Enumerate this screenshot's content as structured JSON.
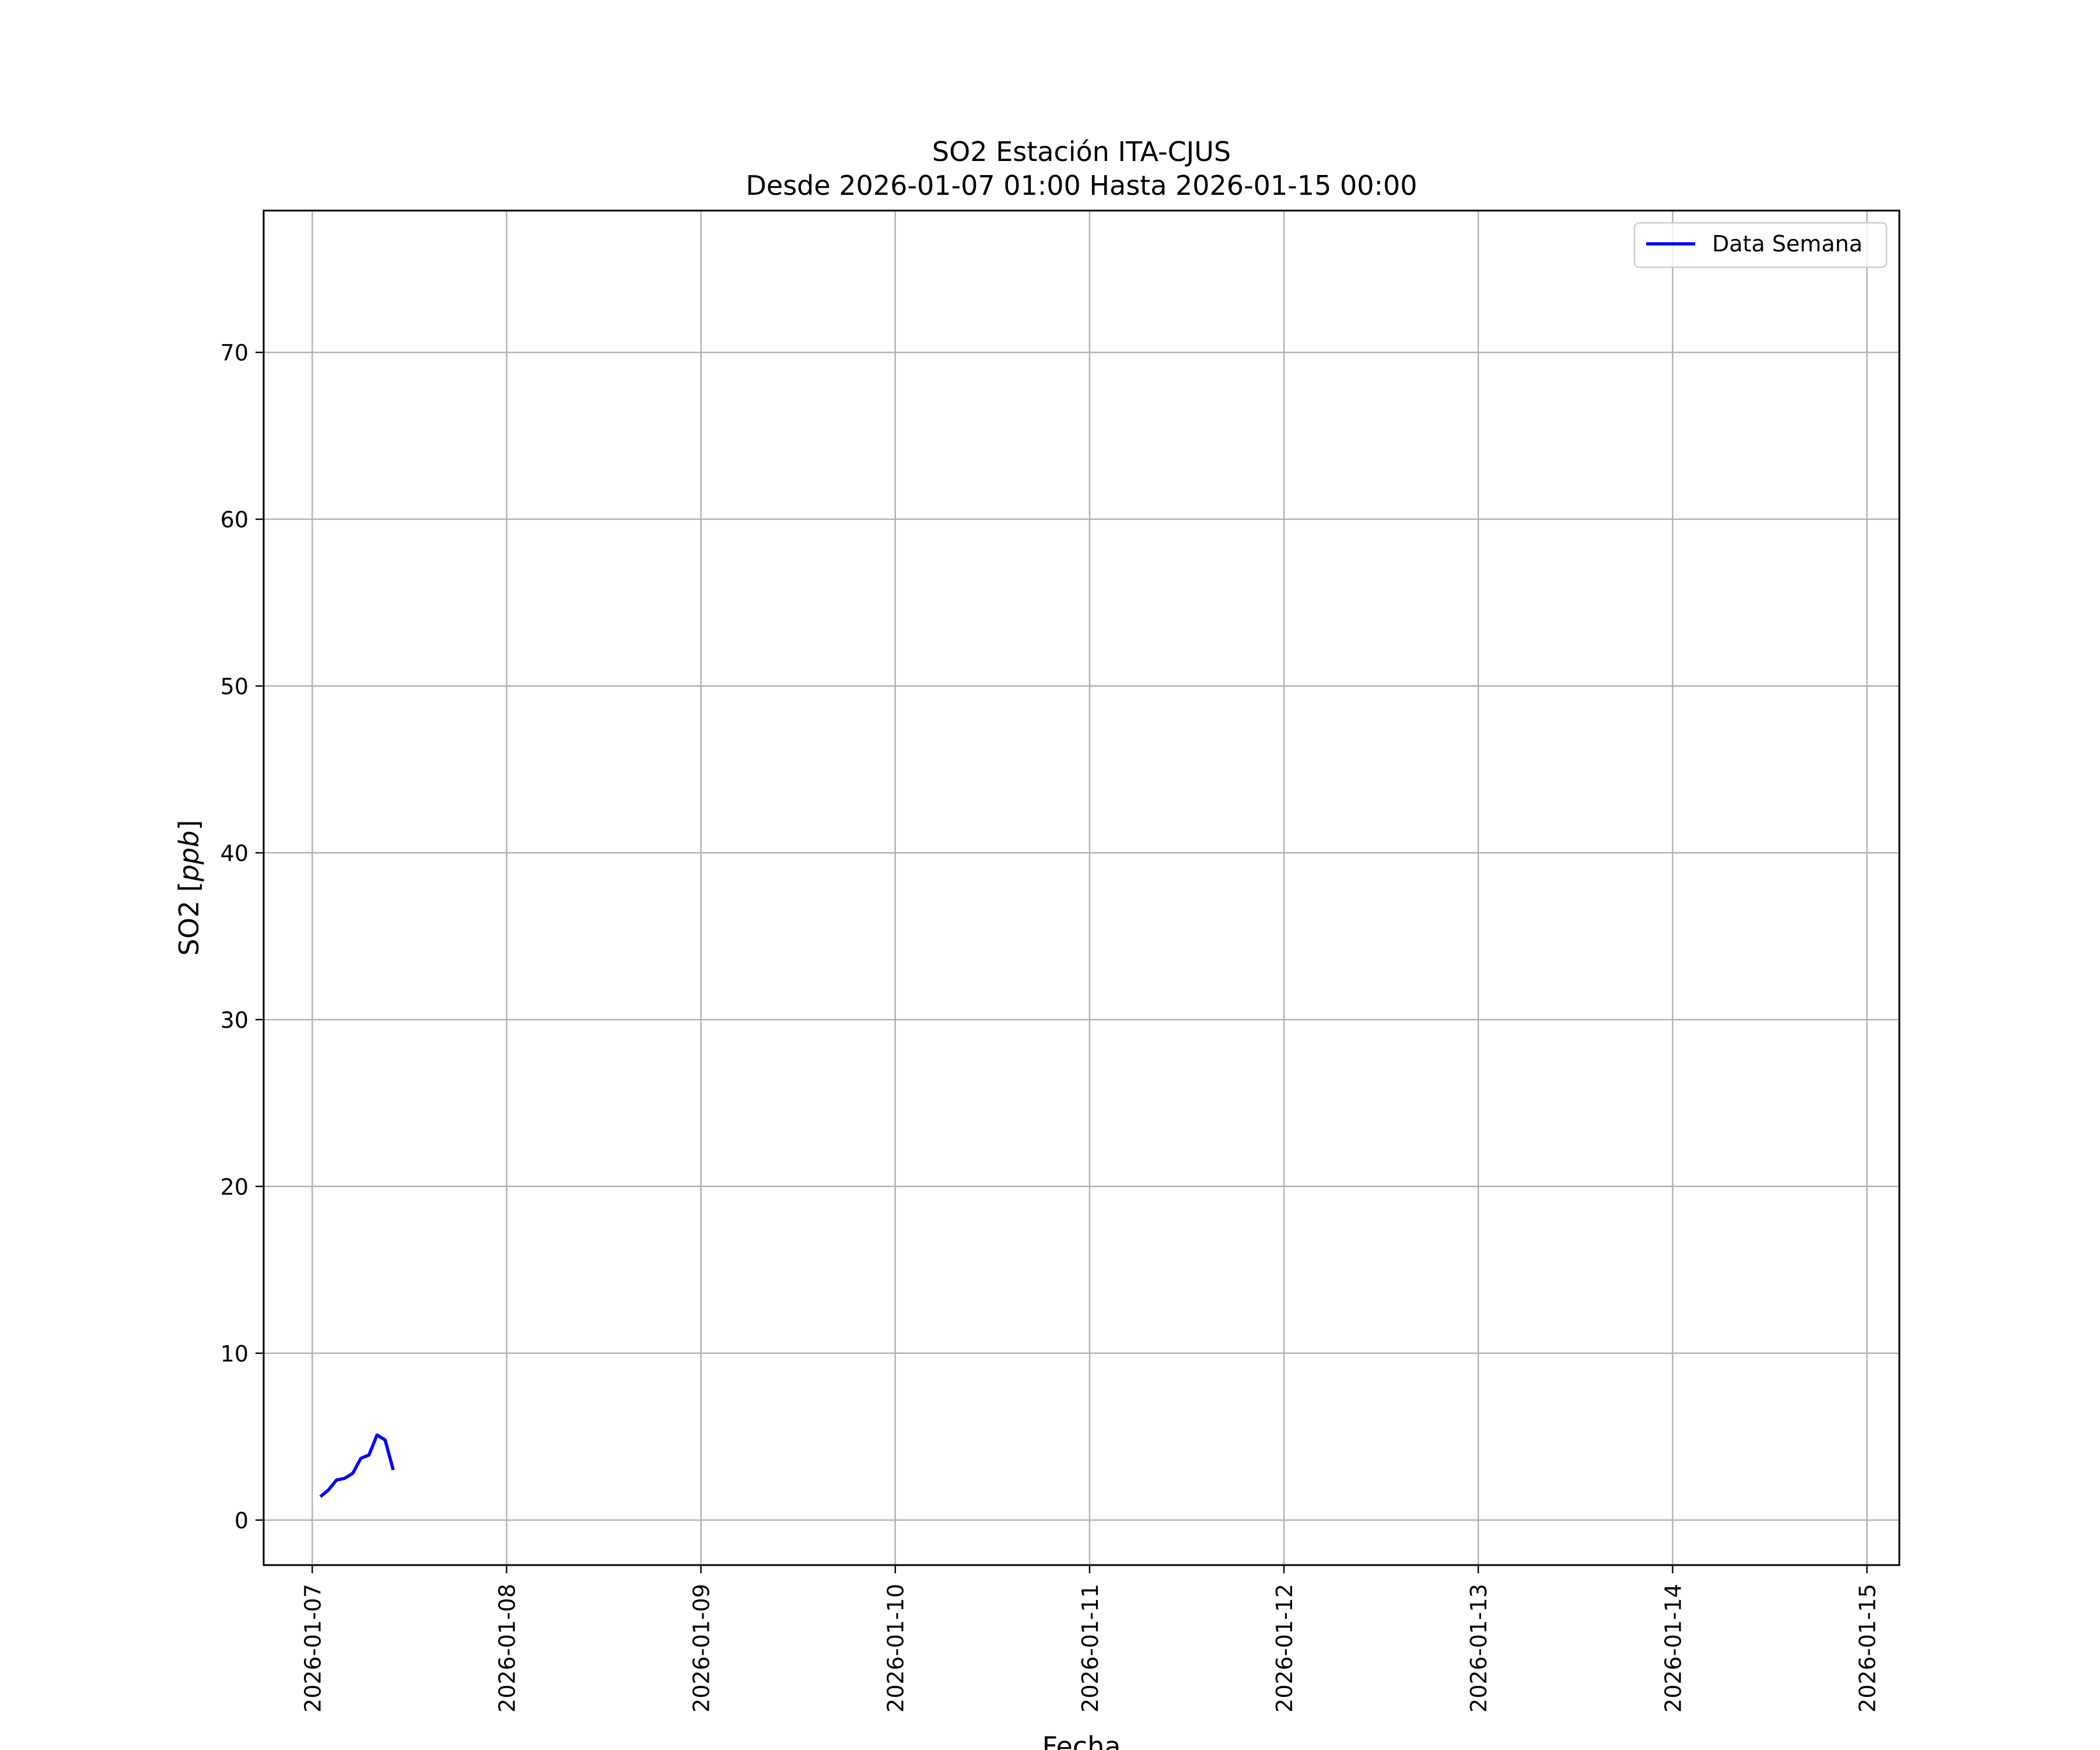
{
  "chart_data": {
    "type": "line",
    "title": "SO2 Estación ITA-CJUS",
    "subtitle": "Desde 2026-01-07 01:00 Hasta 2026-01-15 00:00",
    "xlabel": "Fecha",
    "ylabel_prefix": "SO2 [",
    "ylabel_unit": "ppb",
    "ylabel_suffix": "]",
    "xlim": [
      "2026-01-06 18:00",
      "2026-01-15 04:00"
    ],
    "ylim": [
      -2.7,
      78.5
    ],
    "x_ticks": [
      "2026-01-07",
      "2026-01-08",
      "2026-01-09",
      "2026-01-10",
      "2026-01-11",
      "2026-01-12",
      "2026-01-13",
      "2026-01-14",
      "2026-01-15"
    ],
    "y_ticks": [
      0,
      10,
      20,
      30,
      40,
      50,
      60,
      70
    ],
    "grid": true,
    "legend_position": "top-right",
    "series": [
      {
        "name": "Data Semana",
        "color": "#0000ff",
        "start": "2026-01-07 01:00",
        "interval_hours": 1,
        "values": [
          1.4,
          1.8,
          2.4,
          2.5,
          2.8,
          3.7,
          3.9,
          5.1,
          4.8,
          3.0,
          null,
          null,
          null,
          null,
          null,
          null,
          null,
          null,
          null,
          null,
          null,
          null,
          null,
          null,
          null,
          null,
          null,
          null,
          null,
          null,
          null,
          null,
          null,
          null,
          null,
          null,
          null,
          null,
          null,
          null,
          null,
          null,
          null,
          null,
          null,
          null,
          null,
          null,
          null,
          null,
          null,
          null,
          null,
          null,
          null,
          null,
          null,
          null,
          null,
          null,
          null,
          null,
          null,
          null,
          null,
          null,
          null,
          null,
          null,
          null,
          null,
          null,
          null,
          null,
          null,
          null,
          null,
          null,
          null,
          null,
          null,
          null,
          null,
          null,
          null,
          null,
          null,
          null,
          null,
          null,
          null,
          null,
          null,
          null,
          null,
          null,
          null,
          null,
          null,
          null,
          null,
          null,
          null,
          null,
          null,
          null,
          null,
          null,
          null,
          null,
          null,
          null,
          null,
          null,
          null,
          null,
          null,
          null,
          null,
          null,
          null,
          null,
          null,
          null,
          null,
          null,
          null,
          null,
          null,
          null,
          null,
          null,
          null,
          null,
          null,
          null,
          null,
          null,
          null,
          null,
          null,
          null,
          null,
          null,
          null,
          null,
          null,
          null,
          null,
          null,
          null,
          null,
          null,
          null,
          null,
          null,
          null,
          null,
          null,
          null,
          null,
          null,
          null,
          null,
          null,
          null,
          null,
          null,
          null,
          null,
          null,
          null,
          null,
          null,
          null,
          null,
          null,
          null,
          null,
          null,
          null,
          null,
          null,
          null,
          null,
          null,
          null,
          null,
          null,
          null,
          null,
          null,
          null,
          null
        ]
      }
    ]
  }
}
